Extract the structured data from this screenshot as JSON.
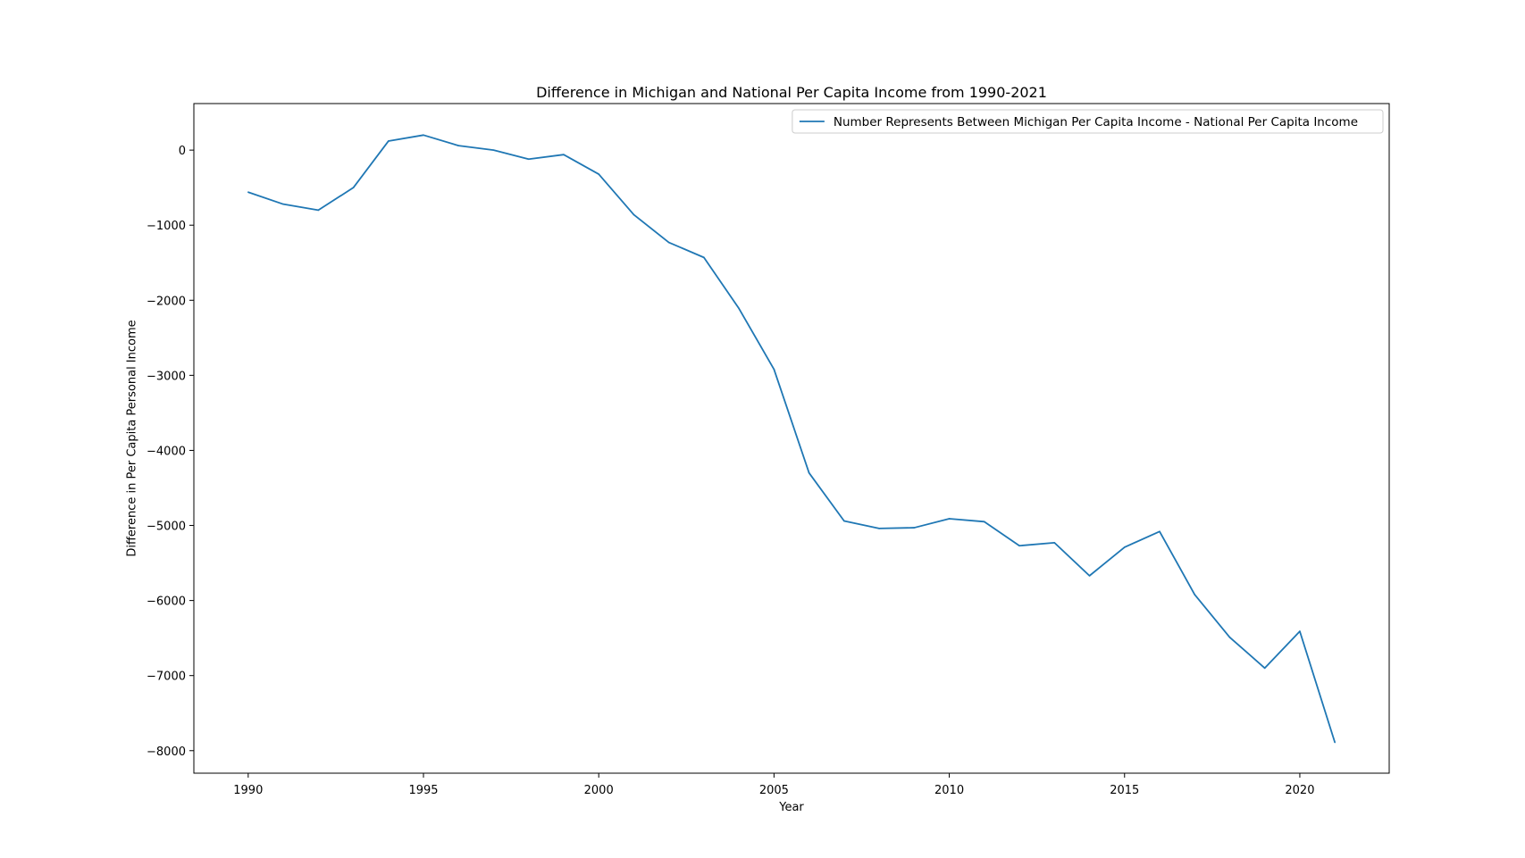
{
  "chart_data": {
    "type": "line",
    "title": "Difference in Michigan and National Per Capita Income from 1990-2021",
    "xlabel": "Year",
    "ylabel": "Difference in Per Capita Personal Income",
    "xlim": [
      1988.45,
      2022.55
    ],
    "ylim": [
      -8300,
      620
    ],
    "x_ticks": [
      1990,
      1995,
      2000,
      2005,
      2010,
      2015,
      2020
    ],
    "y_ticks": [
      0,
      -1000,
      -2000,
      -3000,
      -4000,
      -5000,
      -6000,
      -7000,
      -8000
    ],
    "grid": false,
    "legend_position": "upper right",
    "series": [
      {
        "name": "Number Represents Between Michigan Per Capita Income - National Per Capita Income",
        "color": "#1f77b4",
        "x": [
          1990,
          1991,
          1992,
          1993,
          1994,
          1995,
          1996,
          1997,
          1998,
          1999,
          2000,
          2001,
          2002,
          2003,
          2004,
          2005,
          2006,
          2007,
          2008,
          2009,
          2010,
          2011,
          2012,
          2013,
          2014,
          2015,
          2016,
          2017,
          2018,
          2019,
          2020,
          2021
        ],
        "y": [
          -560,
          -720,
          -800,
          -500,
          120,
          200,
          60,
          0,
          -120,
          -60,
          -320,
          -860,
          -1230,
          -1430,
          -2110,
          -2920,
          -4300,
          -4940,
          -5040,
          -5030,
          -4910,
          -4950,
          -5270,
          -5230,
          -5670,
          -5290,
          -5080,
          -5920,
          -6490,
          -6900,
          -6410,
          -7890
        ]
      }
    ]
  }
}
